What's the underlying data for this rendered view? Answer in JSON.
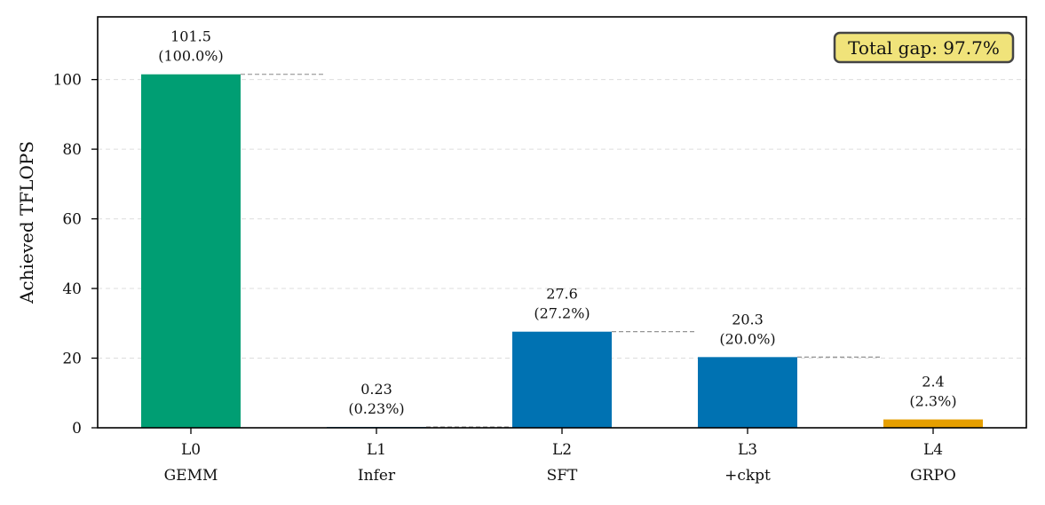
{
  "chart_data": {
    "type": "bar",
    "categories": [
      "L0\nGEMM",
      "L1\nInfer",
      "L2\nSFT",
      "L3\n+ckpt",
      "L4\nGRPO"
    ],
    "category_lines": [
      [
        "L0",
        "GEMM"
      ],
      [
        "L1",
        "Infer"
      ],
      [
        "L2",
        "SFT"
      ],
      [
        "L3",
        "+ckpt"
      ],
      [
        "L4",
        "GRPO"
      ]
    ],
    "values": [
      101.5,
      0.23,
      27.6,
      20.3,
      2.4
    ],
    "value_labels": [
      "101.5",
      "0.23",
      "27.6",
      "20.3",
      "2.4"
    ],
    "percent_labels": [
      "(100.0%)",
      "(0.23%)",
      "(27.2%)",
      "(20.0%)",
      "(2.3%)"
    ],
    "bar_colors": [
      "#009E73",
      "#0072B2",
      "#0072B2",
      "#0072B2",
      "#E69F00"
    ],
    "xlabel": "",
    "ylabel": "Achieved TFLOPS",
    "ylim": [
      0,
      118
    ],
    "yticks": [
      0,
      20,
      40,
      60,
      80,
      100
    ],
    "grid": "horizontal, dashed",
    "connectors": "dashed lines from each bar top to the next bar",
    "annotation": {
      "text": "Total gap: 97.7%",
      "position": "top-right",
      "background": "#F0E37A",
      "border": "#444444"
    }
  }
}
